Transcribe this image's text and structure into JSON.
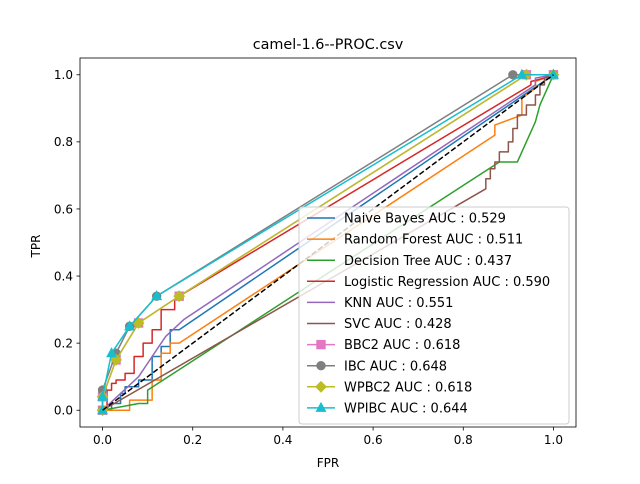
{
  "chart_data": {
    "type": "line",
    "title": "camel-1.6--PROC.csv",
    "xlabel": "FPR",
    "ylabel": "TPR",
    "xlim": [
      -0.05,
      1.05
    ],
    "ylim": [
      -0.05,
      1.05
    ],
    "xticks": [
      "0.0",
      "0.2",
      "0.4",
      "0.6",
      "0.8",
      "1.0"
    ],
    "yticks": [
      "0.0",
      "0.2",
      "0.4",
      "0.6",
      "0.8",
      "1.0"
    ],
    "grid": false,
    "legend_position": "lower right",
    "baseline": {
      "x": [
        0,
        1
      ],
      "y": [
        0,
        1
      ],
      "color": "#000000",
      "style": "dashed"
    },
    "series": [
      {
        "name": "Naive Bayes AUC : 0.529",
        "color": "#1f77b4",
        "marker": "none",
        "x": [
          0,
          0.02,
          0.02,
          0.04,
          0.04,
          0.05,
          0.05,
          0.08,
          0.08,
          0.11,
          0.11,
          0.13,
          0.13,
          0.15,
          0.15,
          0.17,
          1.0
        ],
        "y": [
          0,
          0,
          0.02,
          0.02,
          0.05,
          0.05,
          0.07,
          0.07,
          0.09,
          0.09,
          0.16,
          0.16,
          0.19,
          0.19,
          0.24,
          0.24,
          1.0
        ]
      },
      {
        "name": "Random Forest AUC : 0.511",
        "color": "#ff7f0e",
        "marker": "none",
        "x": [
          0,
          0.06,
          0.06,
          0.11,
          0.11,
          0.13,
          0.13,
          0.15,
          0.15,
          0.17,
          0.87,
          0.87,
          0.93,
          0.93,
          0.96,
          0.96,
          1.0
        ],
        "y": [
          0,
          0,
          0.03,
          0.03,
          0.09,
          0.09,
          0.17,
          0.17,
          0.2,
          0.2,
          0.82,
          0.85,
          0.88,
          0.93,
          0.96,
          0.98,
          1.0
        ]
      },
      {
        "name": "Decision Tree AUC : 0.437",
        "color": "#2ca02c",
        "marker": "none",
        "x": [
          0,
          0.08,
          0.1,
          0.1,
          0.88,
          0.92,
          0.94,
          0.96,
          0.97,
          1.0
        ],
        "y": [
          0,
          0.02,
          0.02,
          0.06,
          0.74,
          0.74,
          0.8,
          0.86,
          0.91,
          1.0
        ]
      },
      {
        "name": "Logistic Regression AUC : 0.590",
        "color": "#d62728",
        "marker": "none",
        "x": [
          0,
          0.01,
          0.01,
          0.02,
          0.02,
          0.03,
          0.03,
          0.05,
          0.05,
          0.07,
          0.07,
          0.09,
          0.09,
          0.11,
          0.11,
          0.13,
          0.13,
          0.16,
          0.16,
          0.17,
          0.95,
          0.95,
          0.98,
          1.0
        ],
        "y": [
          0,
          0,
          0.06,
          0.06,
          0.08,
          0.08,
          0.09,
          0.09,
          0.11,
          0.11,
          0.16,
          0.16,
          0.2,
          0.2,
          0.24,
          0.24,
          0.3,
          0.3,
          0.33,
          0.34,
          0.97,
          0.98,
          0.99,
          1.0
        ]
      },
      {
        "name": "KNN AUC : 0.551",
        "color": "#9467bd",
        "marker": "none",
        "x": [
          0,
          0.08,
          0.1,
          0.12,
          0.14,
          0.18,
          0.96,
          0.96,
          1.0
        ],
        "y": [
          0,
          0.1,
          0.14,
          0.18,
          0.22,
          0.27,
          0.97,
          0.99,
          1.0
        ]
      },
      {
        "name": "SVC AUC : 0.428",
        "color": "#8c564b",
        "marker": "none",
        "x": [
          0,
          0.85,
          0.85,
          0.86,
          0.86,
          0.87,
          0.87,
          0.88,
          0.88,
          0.9,
          0.9,
          0.91,
          0.91,
          0.92,
          0.92,
          0.94,
          0.94,
          0.96,
          0.96,
          0.97,
          0.97,
          0.98,
          0.98,
          1.0
        ],
        "y": [
          0,
          0.66,
          0.69,
          0.69,
          0.72,
          0.72,
          0.74,
          0.74,
          0.77,
          0.77,
          0.8,
          0.8,
          0.84,
          0.84,
          0.88,
          0.88,
          0.91,
          0.91,
          0.94,
          0.94,
          0.97,
          0.97,
          0.99,
          1.0
        ]
      },
      {
        "name": "BBC2 AUC : 0.618",
        "color": "#e377c2",
        "marker": "square",
        "x": [
          0,
          0.0,
          0.03,
          0.08,
          0.17,
          0.94,
          1.0
        ],
        "y": [
          0,
          0.04,
          0.15,
          0.26,
          0.34,
          1.0,
          1.0
        ]
      },
      {
        "name": "IBC AUC : 0.648",
        "color": "#7f7f7f",
        "marker": "circle",
        "x": [
          0,
          0.0,
          0.03,
          0.06,
          0.12,
          0.91,
          1.0
        ],
        "y": [
          0,
          0.06,
          0.17,
          0.25,
          0.34,
          1.0,
          1.0
        ]
      },
      {
        "name": "WPBC2 AUC : 0.618",
        "color": "#bcbd22",
        "marker": "diamond",
        "x": [
          0,
          0.0,
          0.03,
          0.08,
          0.17,
          0.94,
          1.0
        ],
        "y": [
          0,
          0.04,
          0.15,
          0.26,
          0.34,
          1.0,
          1.0
        ]
      },
      {
        "name": "WPIBC AUC : 0.644",
        "color": "#17becf",
        "marker": "triangle",
        "x": [
          0,
          0.0,
          0.02,
          0.06,
          0.12,
          0.93,
          1.0
        ],
        "y": [
          0,
          0.04,
          0.17,
          0.25,
          0.34,
          1.0,
          1.0
        ]
      }
    ]
  }
}
